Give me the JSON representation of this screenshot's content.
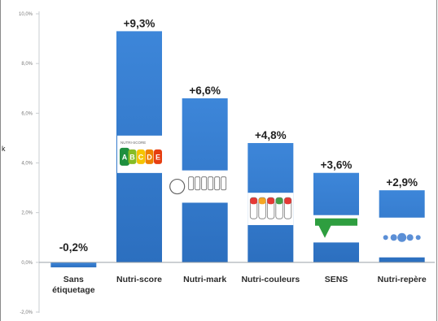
{
  "chart_data": {
    "type": "bar",
    "categories": [
      "Sans étiquetage",
      "Nutri-score",
      "Nutri-mark",
      "Nutri-couleurs",
      "SENS",
      "Nutri-repère"
    ],
    "category_lines": [
      [
        "Sans",
        "étiquetage"
      ],
      [
        "Nutri-score"
      ],
      [
        "Nutri-mark"
      ],
      [
        "Nutri-couleurs"
      ],
      [
        "SENS"
      ],
      [
        "Nutri-repère"
      ]
    ],
    "values": [
      -0.2,
      9.3,
      6.6,
      4.8,
      3.6,
      2.9
    ],
    "data_labels": [
      "-0,2%",
      "+9,3%",
      "+6,6%",
      "+4,8%",
      "+3,6%",
      "+2,9%"
    ],
    "yticks": [
      -2,
      0,
      2,
      4,
      6,
      8,
      10
    ],
    "ytick_labels": [
      "-2,0%",
      "0,0%",
      "2,0%",
      "4,0%",
      "6,0%",
      "8,0%",
      "10,0%"
    ],
    "ylim": [
      -2,
      10
    ],
    "title": "",
    "xlabel": "",
    "ylabel": "",
    "grid": false,
    "legend": "none",
    "colors": {
      "bar_top": "#3d86d9",
      "bar_bottom": "#2c6fbf",
      "axis": "#9aa0a6",
      "text": "#222222"
    },
    "label_icons": [
      null,
      {
        "kind": "nutri-score",
        "caption": "NUTRI-SCORE",
        "letters": [
          "A",
          "B",
          "C",
          "D",
          "E"
        ],
        "colors": [
          "#1e8f3e",
          "#86bc25",
          "#f5c400",
          "#ee8100",
          "#e63e11"
        ]
      },
      {
        "kind": "nutri-mark"
      },
      {
        "kind": "traffic-lights"
      },
      {
        "kind": "sens"
      },
      {
        "kind": "nutri-repere"
      }
    ]
  },
  "edge_mark": "k"
}
